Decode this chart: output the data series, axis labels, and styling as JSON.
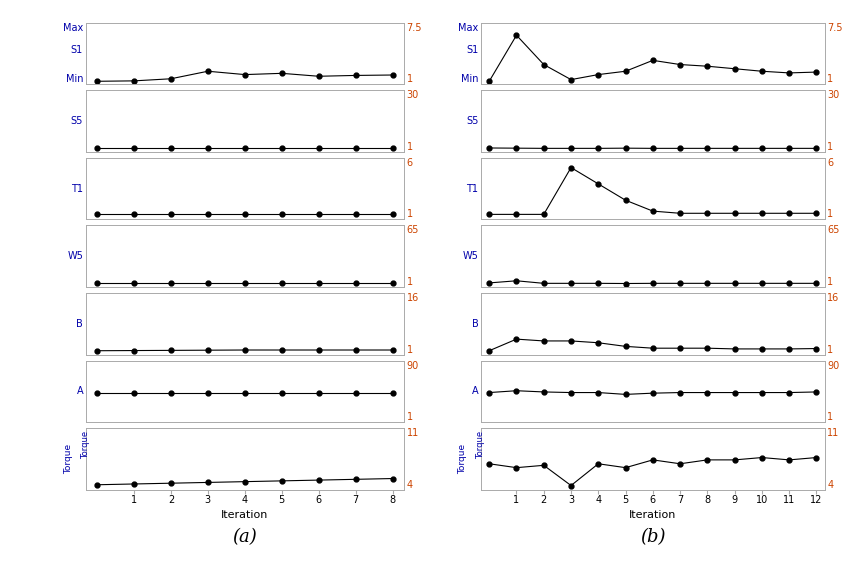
{
  "panel_a": {
    "iterations": [
      0,
      1,
      2,
      3,
      4,
      5,
      6,
      7,
      8
    ],
    "S1": {
      "ymin": 1,
      "ymax": 7.5,
      "data": [
        1.0,
        1.05,
        1.3,
        2.2,
        1.8,
        1.95,
        1.6,
        1.7,
        1.75
      ]
    },
    "S5": {
      "ymin": 1,
      "ymax": 30,
      "data": [
        1.5,
        1.5,
        1.5,
        1.5,
        1.5,
        1.5,
        1.5,
        1.5,
        1.5
      ]
    },
    "T1": {
      "ymin": 1,
      "ymax": 6,
      "data": [
        1.2,
        1.2,
        1.2,
        1.2,
        1.2,
        1.2,
        1.2,
        1.2,
        1.2
      ]
    },
    "W5": {
      "ymin": 1,
      "ymax": 65,
      "data": [
        2.0,
        2.0,
        2.0,
        2.0,
        2.0,
        2.0,
        2.0,
        2.0,
        2.0
      ]
    },
    "B": {
      "ymin": 1,
      "ymax": 16,
      "data": [
        1.3,
        1.35,
        1.4,
        1.45,
        1.5,
        1.5,
        1.5,
        1.5,
        1.5
      ]
    },
    "A": {
      "ymin": 1,
      "ymax": 90,
      "data": [
        45,
        45,
        45,
        45,
        45,
        45,
        45,
        45,
        45
      ]
    },
    "Torque": {
      "ymin": 4,
      "ymax": 11,
      "data": [
        4.3,
        4.4,
        4.5,
        4.6,
        4.7,
        4.8,
        4.9,
        5.0,
        5.1
      ]
    }
  },
  "panel_b": {
    "iterations": [
      0,
      1,
      2,
      3,
      4,
      5,
      6,
      7,
      8,
      9,
      10,
      11,
      12
    ],
    "S1": {
      "ymin": 1,
      "ymax": 7.5,
      "data": [
        1.0,
        6.5,
        3.0,
        1.2,
        1.8,
        2.2,
        3.5,
        3.0,
        2.8,
        2.5,
        2.2,
        2.0,
        2.1
      ]
    },
    "S5": {
      "ymin": 1,
      "ymax": 30,
      "data": [
        1.5,
        1.4,
        1.3,
        1.3,
        1.3,
        1.4,
        1.3,
        1.3,
        1.3,
        1.3,
        1.3,
        1.3,
        1.3
      ]
    },
    "T1": {
      "ymin": 1,
      "ymax": 6,
      "data": [
        1.2,
        1.2,
        1.2,
        5.5,
        4.0,
        2.5,
        1.5,
        1.3,
        1.3,
        1.3,
        1.3,
        1.3,
        1.3
      ]
    },
    "W5": {
      "ymin": 1,
      "ymax": 65,
      "data": [
        2.5,
        5.0,
        2.0,
        2.0,
        2.0,
        1.8,
        2.0,
        2.0,
        2.0,
        2.0,
        2.0,
        2.0,
        2.0
      ]
    },
    "B": {
      "ymin": 1,
      "ymax": 16,
      "data": [
        1.3,
        4.5,
        4.0,
        4.0,
        3.5,
        2.5,
        2.0,
        2.0,
        2.0,
        1.8,
        1.8,
        1.8,
        1.9
      ]
    },
    "A": {
      "ymin": 1,
      "ymax": 90,
      "data": [
        45,
        48,
        46,
        45,
        45,
        42,
        44,
        45,
        45,
        45,
        45,
        45,
        46
      ]
    },
    "Torque": {
      "ymin": 4,
      "ymax": 11,
      "data": [
        7.0,
        6.5,
        6.8,
        4.2,
        7.0,
        6.5,
        7.5,
        7.0,
        7.5,
        7.5,
        7.8,
        7.5,
        7.8
      ]
    }
  },
  "subplot_keys": [
    "S1",
    "S5",
    "T1",
    "W5",
    "B",
    "A",
    "Torque"
  ],
  "label_color": "#0000aa",
  "right_label_color": "#cc4400"
}
